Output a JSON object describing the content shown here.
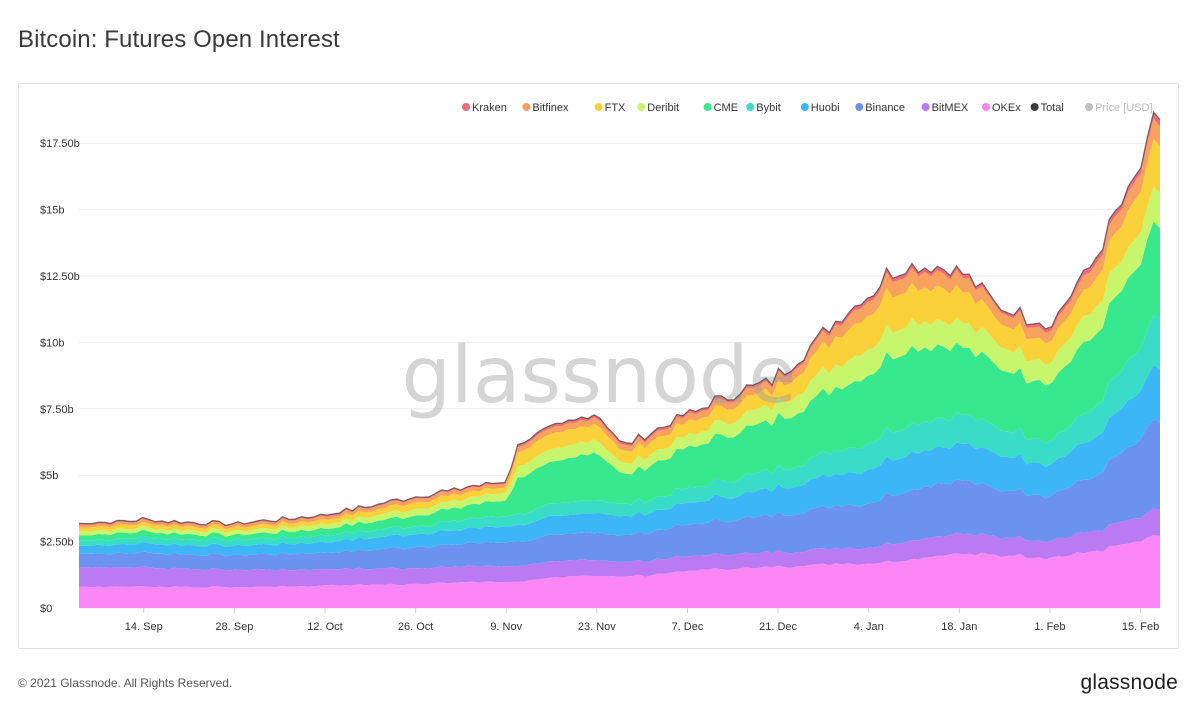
{
  "header": {
    "title": "Bitcoin: Futures Open Interest"
  },
  "footer": {
    "copyright": "© 2021 Glassnode. All Rights Reserved.",
    "logo_text": "glassnode"
  },
  "watermark": "glassnode",
  "colors": {
    "Kraken": "#ef6b78",
    "Bitfinex": "#f7a25f",
    "FTX": "#fbd13a",
    "Deribit": "#c7f56c",
    "CME": "#38e88e",
    "Bybit": "#38dcc7",
    "Huobi": "#3cb6f7",
    "Binance": "#6c92f0",
    "BitMEX": "#b97af2",
    "OKEx": "#fc86f5",
    "Total": "#3c3c3c",
    "Price [USD]": "#8a8a8a"
  },
  "chart_data": {
    "type": "area",
    "stacked": true,
    "title": "Bitcoin: Futures Open Interest",
    "xlabel": "",
    "ylabel": "",
    "y_unit": "USD",
    "ylim": [
      0,
      18750000000
    ],
    "y_ticks": [
      0,
      2500000000,
      5000000000,
      7500000000,
      10000000000,
      12500000000,
      15000000000,
      17500000000
    ],
    "y_tick_labels": [
      "$0",
      "$2.50b",
      "$5b",
      "$7.50b",
      "$10b",
      "$12.50b",
      "$15b",
      "$17.50b"
    ],
    "x_range": [
      "2020-09-04",
      "2021-02-18"
    ],
    "x_ticks": [
      "2020-09-14",
      "2020-09-28",
      "2020-10-12",
      "2020-10-26",
      "2020-11-09",
      "2020-11-23",
      "2020-12-07",
      "2020-12-21",
      "2021-01-04",
      "2021-01-18",
      "2021-02-01",
      "2021-02-15"
    ],
    "x_tick_labels": [
      "14. Sep",
      "28. Sep",
      "12. Oct",
      "26. Oct",
      "9. Nov",
      "23. Nov",
      "7. Dec",
      "21. Dec",
      "4. Jan",
      "18. Jan",
      "1. Feb",
      "15. Feb"
    ],
    "grid": true,
    "legend_position": "top-right",
    "legend": [
      "Kraken",
      "Bitfinex",
      "FTX",
      "Deribit",
      "CME",
      "Bybit",
      "Huobi",
      "Binance",
      "BitMEX",
      "OKEx",
      "Total",
      "Price [USD]"
    ],
    "legend_disabled": [
      "Price [USD]"
    ],
    "x": [
      "2020-09-04",
      "2020-09-14",
      "2020-09-28",
      "2020-10-12",
      "2020-10-26",
      "2020-11-09",
      "2020-11-11",
      "2020-11-23",
      "2020-11-27",
      "2020-12-07",
      "2020-12-21",
      "2021-01-04",
      "2021-01-08",
      "2021-01-18",
      "2021-01-24",
      "2021-02-01",
      "2021-02-07",
      "2021-02-15",
      "2021-02-18"
    ],
    "series": [
      {
        "name": "OKEx",
        "values": [
          0.8,
          0.8,
          0.78,
          0.85,
          0.9,
          1.0,
          1.0,
          1.25,
          1.15,
          1.4,
          1.55,
          1.7,
          1.8,
          2.1,
          2.0,
          1.9,
          2.1,
          2.5,
          2.7
        ]
      },
      {
        "name": "BitMEX",
        "values": [
          0.75,
          0.72,
          0.65,
          0.62,
          0.6,
          0.6,
          0.6,
          0.6,
          0.55,
          0.55,
          0.55,
          0.6,
          0.7,
          0.75,
          0.7,
          0.65,
          0.75,
          0.9,
          1.0
        ]
      },
      {
        "name": "Binance",
        "values": [
          0.5,
          0.55,
          0.55,
          0.62,
          0.8,
          0.9,
          0.92,
          1.05,
          1.0,
          1.2,
          1.4,
          1.7,
          1.9,
          2.0,
          1.8,
          1.7,
          2.0,
          2.9,
          3.4
        ]
      },
      {
        "name": "Huobi",
        "values": [
          0.3,
          0.35,
          0.35,
          0.4,
          0.5,
          0.6,
          0.62,
          0.75,
          0.7,
          0.8,
          1.0,
          1.3,
          1.4,
          1.4,
          1.3,
          1.2,
          1.4,
          1.8,
          2.0
        ]
      },
      {
        "name": "Bybit",
        "values": [
          0.2,
          0.22,
          0.22,
          0.26,
          0.3,
          0.4,
          0.42,
          0.5,
          0.45,
          0.55,
          0.7,
          1.0,
          1.1,
          1.1,
          1.0,
          0.9,
          1.1,
          1.6,
          1.9
        ]
      },
      {
        "name": "CME",
        "values": [
          0.2,
          0.22,
          0.18,
          0.25,
          0.4,
          0.6,
          1.4,
          1.8,
          1.1,
          1.5,
          1.9,
          2.6,
          2.9,
          2.6,
          2.3,
          2.2,
          2.7,
          3.2,
          3.5
        ]
      },
      {
        "name": "Deribit",
        "values": [
          0.15,
          0.15,
          0.15,
          0.18,
          0.25,
          0.3,
          0.45,
          0.5,
          0.4,
          0.45,
          0.6,
          1.0,
          1.05,
          0.95,
          0.85,
          0.8,
          1.0,
          1.2,
          1.3
        ]
      },
      {
        "name": "FTX",
        "values": [
          0.15,
          0.15,
          0.14,
          0.16,
          0.25,
          0.2,
          0.55,
          0.6,
          0.45,
          0.5,
          0.6,
          1.3,
          1.4,
          1.2,
          0.9,
          0.8,
          1.0,
          1.5,
          1.8
        ]
      },
      {
        "name": "Bitfinex",
        "values": [
          0.1,
          0.1,
          0.1,
          0.12,
          0.15,
          0.15,
          0.2,
          0.25,
          0.2,
          0.25,
          0.3,
          0.55,
          0.6,
          0.55,
          0.45,
          0.4,
          0.55,
          0.7,
          0.75
        ]
      },
      {
        "name": "Kraken",
        "values": [
          0.05,
          0.05,
          0.04,
          0.06,
          0.05,
          0.05,
          0.1,
          0.1,
          0.1,
          0.1,
          0.1,
          0.15,
          0.15,
          0.15,
          0.1,
          0.15,
          0.2,
          0.2,
          0.25
        ]
      }
    ],
    "values_unit": "billion USD",
    "total": [
      3.2,
      3.31,
      3.16,
      3.52,
      4.2,
      4.8,
      6.26,
      7.4,
      6.1,
      7.3,
      8.7,
      11.9,
      13.0,
      12.8,
      11.4,
      10.7,
      12.8,
      16.5,
      18.6
    ]
  }
}
